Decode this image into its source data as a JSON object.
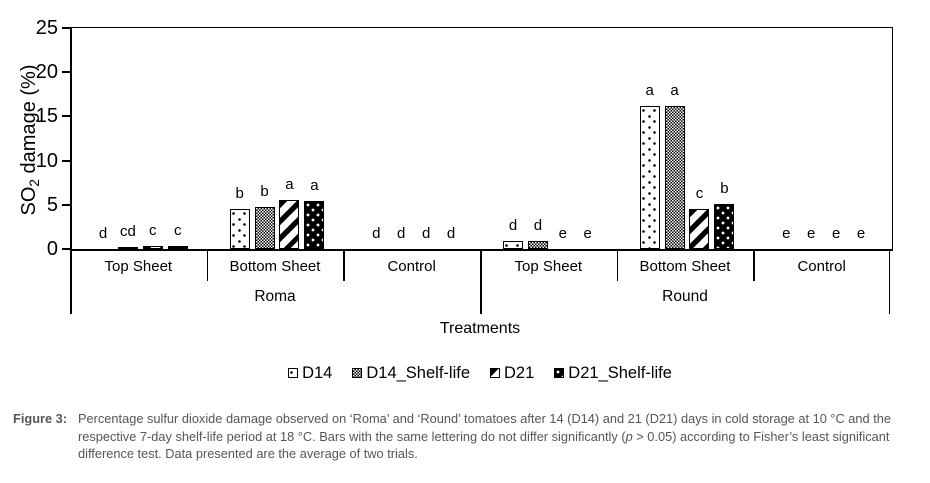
{
  "chart_data": {
    "type": "bar",
    "title": "",
    "ylabel": "SO2 damage (%)",
    "ylabel_parts": {
      "prefix": "SO",
      "sub": "2",
      "suffix": " damage (%)"
    },
    "xlabel": "Treatments",
    "ylim": [
      0,
      25
    ],
    "yticks": [
      0,
      5,
      10,
      15,
      20,
      25
    ],
    "grid": false,
    "legend_position": "bottom",
    "categories": [
      "Top Sheet",
      "Bottom Sheet",
      "Control",
      "Top Sheet",
      "Bottom Sheet",
      "Control"
    ],
    "group_labels": [
      "Roma",
      "Round"
    ],
    "series": [
      {
        "name": "D14",
        "pattern": "dots-sparse-on-white",
        "values": [
          0,
          4.5,
          0,
          0.9,
          16.2,
          0
        ],
        "letters": [
          "d",
          "b",
          "d",
          "d",
          "a",
          "e"
        ]
      },
      {
        "name": "D14_Shelf-life",
        "pattern": "fine-gray-checker",
        "values": [
          0.2,
          4.7,
          0,
          0.9,
          16.2,
          0
        ],
        "letters": [
          "cd",
          "b",
          "d",
          "d",
          "a",
          "e"
        ]
      },
      {
        "name": "D21",
        "pattern": "black-diagonal-stripes",
        "values": [
          0.3,
          5.5,
          0,
          0,
          4.5,
          0
        ],
        "letters": [
          "c",
          "a",
          "d",
          "e",
          "c",
          "e"
        ]
      },
      {
        "name": "D21_Shelf-life",
        "pattern": "white-dots-on-black",
        "values": [
          0.3,
          5.4,
          0,
          0,
          5.1,
          0
        ],
        "letters": [
          "c",
          "a",
          "d",
          "e",
          "b",
          "e"
        ]
      }
    ]
  },
  "caption": {
    "label": "Figure 3:",
    "before_p": "Percentage sulfur dioxide damage observed on ‘Roma’ and ‘Round’ tomatoes after 14 (D14) and 21 (D21) days in cold storage at 10 °C and the respective 7-day shelf-life period at 18 °C. Bars with the same lettering do not differ significantly (",
    "p_italic": "p",
    "after_p": " > 0.05) according to Fisher’s least significant difference test. Data presented are the average of two trials."
  }
}
